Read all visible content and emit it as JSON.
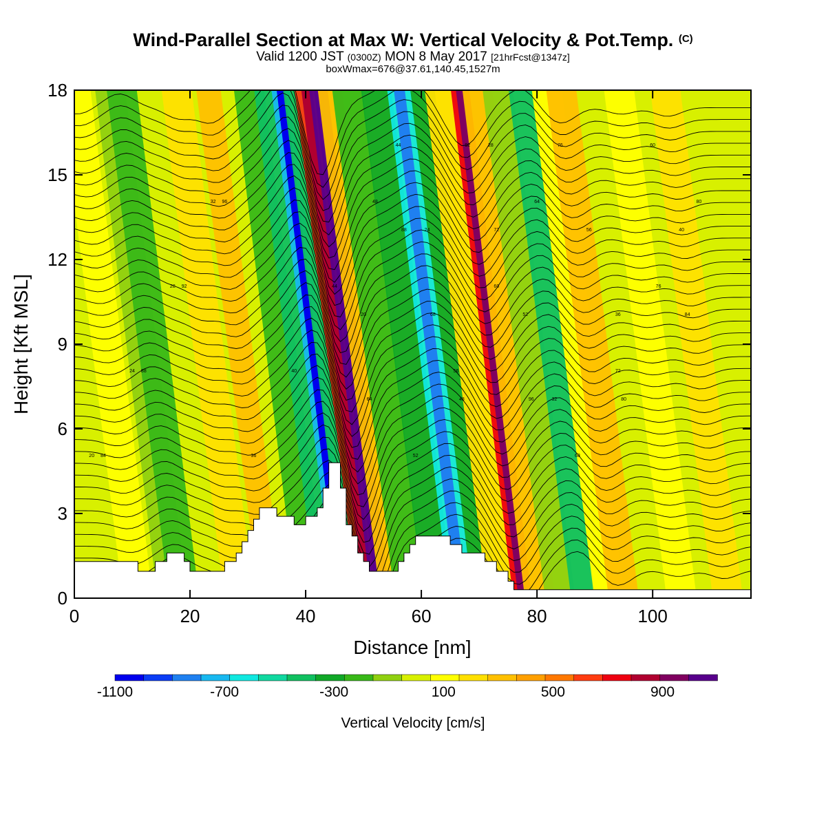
{
  "header": {
    "title": "Wind-Parallel Section at Max W: Vertical Velocity & Pot.Temp.",
    "copyright": "(C)",
    "valid_prefix": "Valid 1200 JST",
    "valid_z": "(0300Z)",
    "valid_date": "MON 8 May 2017",
    "fcst": "[21hrFcst@1347z]",
    "box_info": "boxWmax=676@37.61,140.45,1527m"
  },
  "colors": {
    "scale": [
      "#0000ee",
      "#0a3cf5",
      "#1f80f0",
      "#18b8f0",
      "#10e8e0",
      "#10d8a0",
      "#10c060",
      "#10a828",
      "#38b818",
      "#90d010",
      "#d8f000",
      "#ffff00",
      "#ffe000",
      "#ffc000",
      "#ffa000",
      "#ff7800",
      "#ff3c10",
      "#ee0010",
      "#b00030",
      "#800060",
      "#58008c"
    ],
    "terrain": "#ffffff",
    "isentrope": "#000000"
  },
  "chart_data": {
    "type": "heatmap",
    "xlabel": "Distance [nm]",
    "ylabel": "Height [Kft MSL]",
    "xlim": [
      0,
      117
    ],
    "ylim": [
      0,
      18
    ],
    "xticks": [
      "0",
      "20",
      "40",
      "60",
      "80",
      "100"
    ],
    "yticks": [
      "0",
      "3",
      "6",
      "9",
      "12",
      "15",
      "18"
    ],
    "colorbar": {
      "title": "Vertical Velocity [cm/s]",
      "range": [
        -1100,
        1100
      ],
      "step": 100,
      "labels": [
        "-1100",
        "-700",
        "-300",
        "100",
        "500",
        "900"
      ]
    },
    "vertical_velocity_bands": [
      {
        "x": 11,
        "w": 150
      },
      {
        "x": 17,
        "w": -150
      },
      {
        "x": 19,
        "w": -200
      },
      {
        "x": 28.5,
        "w": 250
      },
      {
        "x": 34,
        "w": 350
      },
      {
        "x": 41,
        "w": -200
      },
      {
        "x": 44,
        "w": -450
      },
      {
        "x": 46.5,
        "w": -750
      },
      {
        "x": 49,
        "w": -400
      },
      {
        "x": 51,
        "w": 600
      },
      {
        "x": 53,
        "w": 1050
      },
      {
        "x": 55,
        "w": 350
      },
      {
        "x": 58,
        "w": -200
      },
      {
        "x": 63,
        "w": -300
      },
      {
        "x": 67,
        "w": -600
      },
      {
        "x": 71,
        "w": -350
      },
      {
        "x": 74,
        "w": 200
      },
      {
        "x": 77.5,
        "w": 700
      },
      {
        "x": 80.5,
        "w": 300
      },
      {
        "x": 84,
        "w": -150
      },
      {
        "x": 88,
        "w": -400
      },
      {
        "x": 92.5,
        "w": 100
      },
      {
        "x": 95,
        "w": 300
      },
      {
        "x": 105,
        "w": 150
      },
      {
        "x": 113,
        "w": 200
      }
    ],
    "terrain_profile": [
      [
        0,
        1.3
      ],
      [
        11,
        1.3
      ],
      [
        11,
        0.95
      ],
      [
        14,
        0.95
      ],
      [
        14,
        1.3
      ],
      [
        16,
        1.3
      ],
      [
        16,
        1.6
      ],
      [
        19,
        1.6
      ],
      [
        19,
        1.3
      ],
      [
        20,
        1.3
      ],
      [
        20,
        0.95
      ],
      [
        26,
        0.95
      ],
      [
        26,
        1.3
      ],
      [
        28,
        1.3
      ],
      [
        28,
        1.6
      ],
      [
        29,
        1.6
      ],
      [
        29,
        2.0
      ],
      [
        30,
        2.0
      ],
      [
        30,
        2.4
      ],
      [
        31,
        2.4
      ],
      [
        31,
        2.8
      ],
      [
        32,
        2.8
      ],
      [
        32,
        3.2
      ],
      [
        35,
        3.2
      ],
      [
        35,
        2.9
      ],
      [
        38,
        2.9
      ],
      [
        38,
        2.6
      ],
      [
        40,
        2.6
      ],
      [
        40,
        2.9
      ],
      [
        42,
        2.9
      ],
      [
        42,
        3.2
      ],
      [
        43,
        3.2
      ],
      [
        43,
        3.9
      ],
      [
        44,
        3.9
      ],
      [
        44,
        4.8
      ],
      [
        46,
        4.8
      ],
      [
        46,
        3.9
      ],
      [
        47,
        3.9
      ],
      [
        47,
        2.6
      ],
      [
        48,
        2.6
      ],
      [
        48,
        2.2
      ],
      [
        49,
        2.2
      ],
      [
        49,
        1.6
      ],
      [
        50,
        1.6
      ],
      [
        50,
        1.3
      ],
      [
        51,
        1.3
      ],
      [
        51,
        0.95
      ],
      [
        56,
        0.95
      ],
      [
        56,
        1.3
      ],
      [
        57,
        1.3
      ],
      [
        57,
        1.6
      ],
      [
        58,
        1.6
      ],
      [
        58,
        1.9
      ],
      [
        59,
        1.9
      ],
      [
        59,
        2.2
      ],
      [
        65,
        2.2
      ],
      [
        65,
        1.9
      ],
      [
        67,
        1.9
      ],
      [
        67,
        1.6
      ],
      [
        71,
        1.6
      ],
      [
        71,
        1.3
      ],
      [
        73,
        1.3
      ],
      [
        73,
        0.95
      ],
      [
        75,
        0.95
      ],
      [
        75,
        0.6
      ],
      [
        76,
        0.6
      ],
      [
        76,
        0.3
      ],
      [
        117,
        0.3
      ]
    ],
    "isentropes": {
      "unit": "K",
      "labels": [
        "20",
        "24",
        "28",
        "32",
        "36",
        "40",
        "44",
        "48",
        "52",
        "56",
        "60",
        "64",
        "68",
        "72",
        "76",
        "80",
        "84",
        "88",
        "92",
        "96"
      ]
    }
  }
}
